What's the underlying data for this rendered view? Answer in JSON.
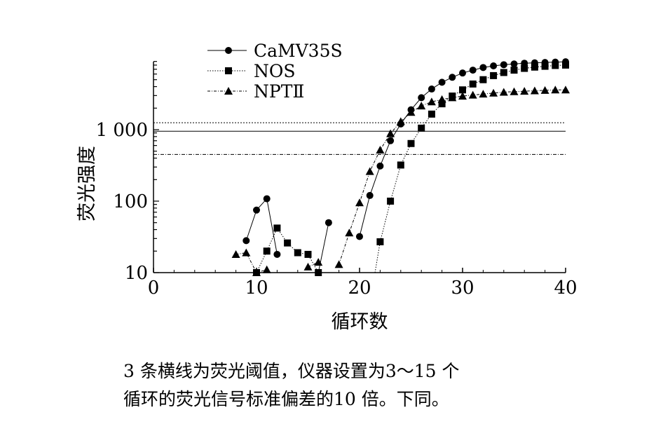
{
  "chart_data": {
    "type": "line",
    "xlabel": "循环数",
    "ylabel": "荧光强度",
    "x_ticks": [
      "0",
      "10",
      "20",
      "30",
      "40"
    ],
    "y_ticks": [
      "10",
      "100",
      "1 000"
    ],
    "xlim": [
      0,
      40
    ],
    "ylim": [
      10,
      10000
    ],
    "y_scale": "log",
    "legend_placement": "top-left",
    "thresholds": [
      1250,
      950,
      450
    ],
    "series": [
      {
        "name": "CaMV35S",
        "marker": "circle",
        "line": "solid",
        "segments": [
          {
            "x": [
              9,
              10,
              11,
              12
            ],
            "y": [
              28,
              75,
              108,
              18
            ]
          },
          {
            "x": [
              16,
              17
            ],
            "y": [
              10,
              50
            ]
          },
          {
            "x": [
              20,
              21,
              22,
              23,
              24,
              25,
              26,
              27,
              28,
              29,
              30,
              31,
              32,
              33,
              34,
              35,
              36,
              37,
              38,
              39,
              40
            ],
            "y": [
              32,
              120,
              310,
              700,
              1200,
              1900,
              2800,
              3700,
              4600,
              5400,
              6200,
              6800,
              7400,
              7800,
              8100,
              8300,
              8500,
              8600,
              8700,
              8800,
              8900
            ]
          }
        ]
      },
      {
        "name": "NOS",
        "marker": "square",
        "line": "dotted",
        "segments": [
          {
            "x": [
              10,
              11,
              12,
              13,
              14,
              15,
              16
            ],
            "y": [
              10,
              20,
              42,
              26,
              19,
              18,
              10
            ]
          },
          {
            "x": [
              21.5,
              22,
              23,
              24,
              25,
              26,
              27,
              28,
              29,
              30,
              31,
              32,
              33,
              34,
              35,
              36,
              37,
              38,
              39,
              40
            ],
            "y": [
              10,
              27,
              100,
              320,
              640,
              1050,
              1650,
              2300,
              2950,
              3600,
              4350,
              5000,
              5700,
              6300,
              6800,
              7200,
              7500,
              7700,
              7900,
              8000
            ]
          }
        ]
      },
      {
        "name": "NPTⅡ",
        "marker": "triangle",
        "line": "dashdot",
        "segments": [
          {
            "x": [
              8,
              9,
              10,
              11
            ],
            "y": [
              18,
              19,
              10,
              11
            ]
          },
          {
            "x": [
              15,
              16
            ],
            "y": [
              12,
              14
            ]
          },
          {
            "x": [
              18,
              19,
              20,
              21,
              22,
              23,
              24,
              25,
              26,
              27,
              28,
              29,
              30,
              31,
              32,
              33,
              34,
              35,
              36,
              37,
              38,
              39,
              40
            ],
            "y": [
              13,
              36,
              95,
              260,
              520,
              880,
              1300,
              1750,
              2150,
              2450,
              2650,
              2800,
              2950,
              3050,
              3150,
              3250,
              3350,
              3400,
              3450,
              3500,
              3550,
              3600,
              3600
            ]
          }
        ]
      }
    ]
  },
  "caption": {
    "line1": "3 条横线为荧光阈值，仪器设置为3～15 个",
    "line2": "循环的荧光信号标准偏差的10 倍。下同。"
  }
}
